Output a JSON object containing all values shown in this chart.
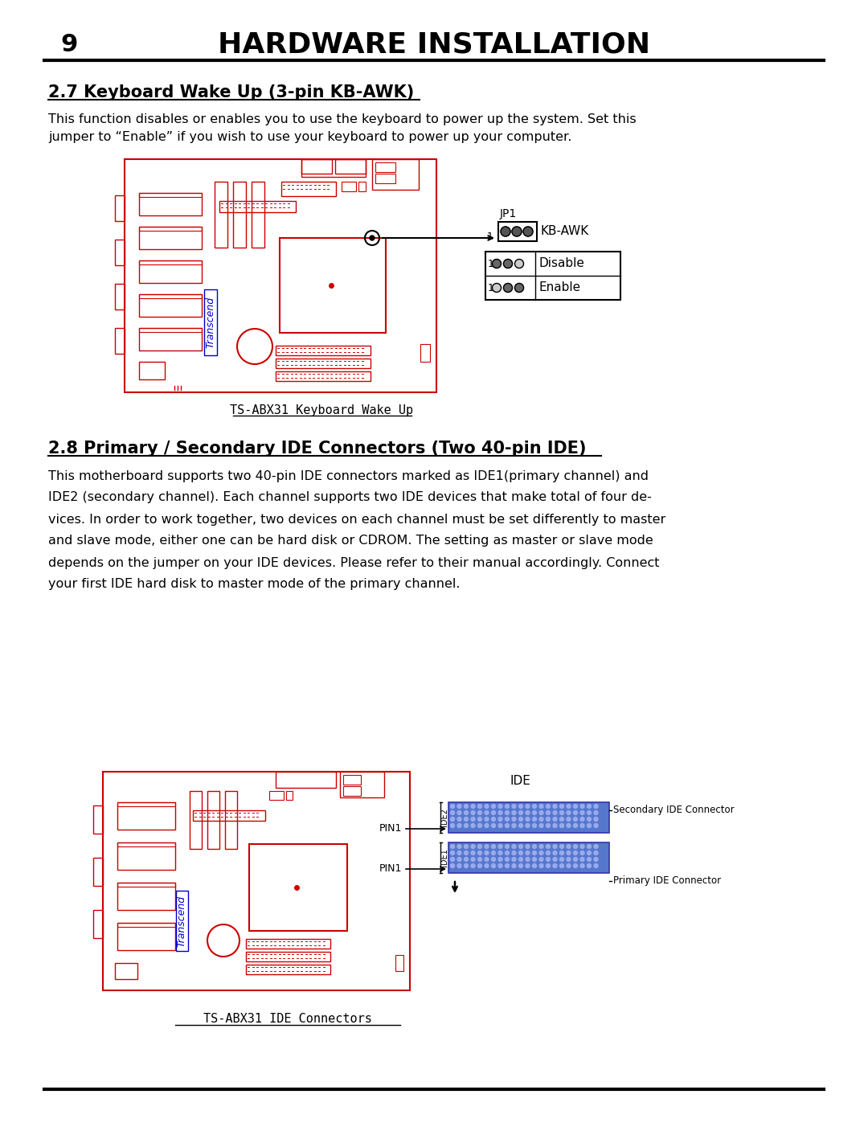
{
  "bg_color": "#ffffff",
  "page_num": "9",
  "header_title": "HARDWARE INSTALLATION",
  "section1_title": "2.7 Keyboard Wake Up (3-pin KB-AWK)",
  "section1_body1": "This function disables or enables you to use the keyboard to power up the system. Set this",
  "section1_body2": "jumper to “Enable” if you wish to use your keyboard to power up your computer.",
  "caption1": "TS-ABX31 Keyboard Wake Up",
  "section2_title": "2.8 Primary / Secondary IDE Connectors (Two 40-pin IDE)",
  "section2_body": "This motherboard supports two 40-pin IDE connectors marked as IDE1(primary channel) and\nIDE2 (secondary channel). Each channel supports two IDE devices that make total of four de-\nvices. In order to work together, two devices on each channel must be set differently to master\nand slave mode, either one can be hard disk or CDROM. The setting as master or slave mode\ndepends on the jumper on your IDE devices. Please refer to their manual accordingly. Connect\nyour first IDE hard disk to master mode of the primary channel.",
  "caption2": "TS-ABX31 IDE Connectors",
  "red_color": "#cc0000",
  "blue_color": "#0000cc"
}
